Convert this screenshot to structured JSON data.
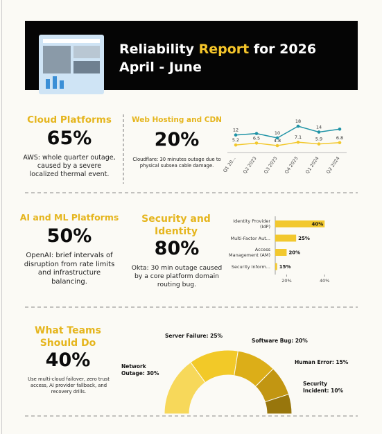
{
  "header": {
    "title": [
      "Reliability",
      "Report",
      "for 2026"
    ],
    "subtitle": "April - June"
  },
  "cards": [
    {
      "title": "Cloud Platforms",
      "stat": "65%",
      "text": "AWS: whole quarter outage, caused by a severe localized thermal event."
    },
    {
      "title": "Web Hosting and CDN",
      "stat": "20%",
      "text": "Cloudflare: 30 minutes outage due to physical subsea cable damage."
    },
    {
      "title": "AI and ML Platforms",
      "stat": "50%",
      "text": "OpenAI: brief intervals of disruption from rate limits and infrastructure balancing."
    },
    {
      "title": "Security and Identity",
      "stat": "80%",
      "text": "Okta: 30 min outage caused by a core platform domain routing bug."
    },
    {
      "title": "What Teams Should Do",
      "stat": "40%",
      "text": "Use multi-cloud failover, zero trust access, AI provider fallback, and recovery drills."
    }
  ],
  "line_chart": {
    "type": "line",
    "categories": [
      "Q1 20...",
      "Q2 2023",
      "Q3 2023",
      "Q4 2023",
      "Q1 2024",
      "Q2 2024"
    ],
    "series": [
      {
        "color": "#1f93a6",
        "values": [
          12,
          13,
          10,
          18,
          14,
          16
        ],
        "value_labels": [
          "12",
          null,
          "10",
          "18",
          "14",
          null
        ]
      },
      {
        "color": "#f2c82e",
        "values": [
          5.2,
          6.5,
          4.8,
          7.1,
          5.9,
          6.8
        ]
      }
    ]
  },
  "bar_chart": {
    "type": "bar",
    "orientation": "horizontal",
    "categories": [
      "Identity Provider (IdP)",
      "Multi-Factor Aut...",
      "Access Management (AM)",
      "Security Inform..."
    ],
    "values": [
      40,
      25,
      20,
      15
    ],
    "value_labels": [
      "40%",
      "25%",
      "20%",
      "15%"
    ],
    "color": "#f2c82e",
    "xlim": [
      14,
      41
    ],
    "xticks": [
      {
        "value": 20,
        "label": "20%"
      },
      {
        "value": 40,
        "label": "40%"
      }
    ]
  },
  "pie_chart": {
    "type": "half-donut",
    "labels": [
      "Network Outage: 30%",
      "Server Failure: 25%",
      "Software Bug: 20%",
      "Human Error: 15%",
      "Security Incident: 10%"
    ],
    "values": [
      30,
      25,
      20,
      15,
      10
    ],
    "colors": [
      "#f7d85a",
      "#f2c928",
      "#dcae18",
      "#c29612",
      "#98760c"
    ]
  }
}
